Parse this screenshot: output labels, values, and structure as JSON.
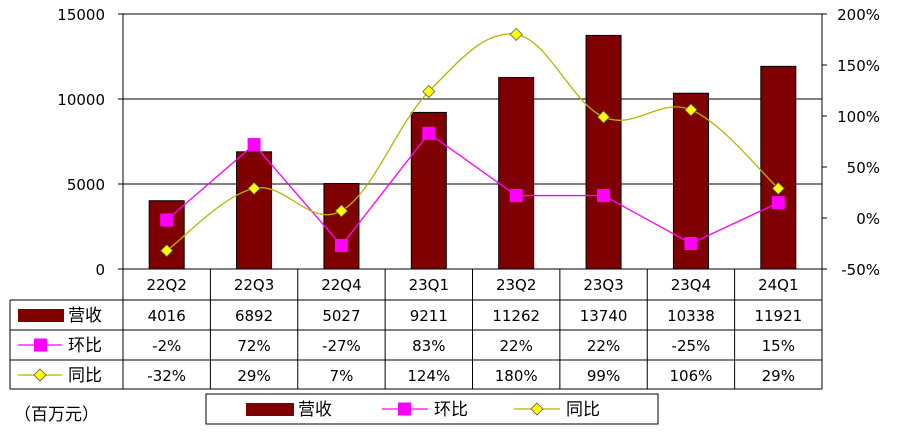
{
  "chart_data": {
    "type": "bar",
    "categories": [
      "22Q2",
      "22Q3",
      "22Q4",
      "23Q1",
      "23Q2",
      "23Q3",
      "23Q4",
      "24Q1"
    ],
    "series": [
      {
        "name": "营收",
        "kind": "bar",
        "axis": "left",
        "color": "#7f0000",
        "values": [
          4016,
          6892,
          5027,
          9211,
          11262,
          13740,
          10338,
          11921
        ],
        "labels": [
          "4016",
          "6892",
          "5027",
          "9211",
          "11262",
          "13740",
          "10338",
          "11921"
        ]
      },
      {
        "name": "环比",
        "kind": "line",
        "axis": "right",
        "color": "#ff00ff",
        "marker": "square",
        "values": [
          -2,
          72,
          -27,
          83,
          22,
          22,
          -25,
          15
        ],
        "labels": [
          "-2%",
          "72%",
          "-27%",
          "83%",
          "22%",
          "22%",
          "-25%",
          "15%"
        ]
      },
      {
        "name": "同比",
        "kind": "smooth-line",
        "axis": "right",
        "color": "#b5b500",
        "marker_color": "#ffff00",
        "marker": "diamond",
        "values": [
          -32,
          29,
          7,
          124,
          180,
          99,
          106,
          29
        ],
        "labels": [
          "-32%",
          "29%",
          "7%",
          "124%",
          "180%",
          "99%",
          "106%",
          "29%"
        ]
      }
    ],
    "left_axis": {
      "ylim": [
        0,
        15000
      ],
      "ticks": [
        "0",
        "5000",
        "10000",
        "15000"
      ]
    },
    "right_axis": {
      "ylim": [
        -50,
        200
      ],
      "ticks": [
        "-50%",
        "0%",
        "50%",
        "100%",
        "150%",
        "200%"
      ]
    },
    "unit_note": "（百万元）",
    "grid": true,
    "legend_position": "bottom"
  }
}
